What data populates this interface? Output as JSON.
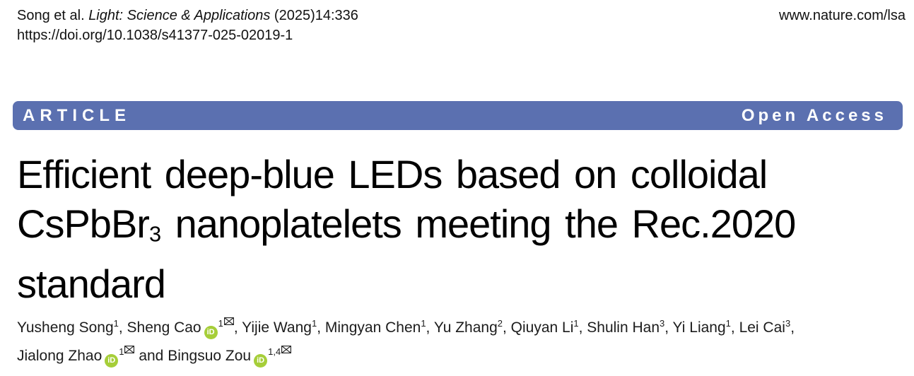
{
  "header": {
    "citation_prefix": "Song et al. ",
    "journal_name": "Light: Science & Applications",
    "citation_suffix": " (2025)14:336",
    "doi": "https://doi.org/10.1038/s41377-025-02019-1",
    "website": "www.nature.com/lsa"
  },
  "banner": {
    "article_label": "ARTICLE",
    "open_access_label": "Open Access",
    "background_color": "#5b70b0",
    "text_color": "#ffffff"
  },
  "title": {
    "line1": "Efficient deep-blue LEDs based on colloidal",
    "line2_formula_base": "CsPbBr",
    "line2_formula_subscript": "3",
    "line2_rest": " nanoplatelets meeting the Rec.2020",
    "line3": "standard"
  },
  "authors": {
    "line1": [
      {
        "name": "Yusheng Song",
        "sup": "1",
        "orcid": false,
        "email": false,
        "sep": ", "
      },
      {
        "name": "Sheng Cao",
        "sup": "1",
        "orcid": true,
        "email": true,
        "sep": ", "
      },
      {
        "name": "Yijie Wang",
        "sup": "1",
        "orcid": false,
        "email": false,
        "sep": ", "
      },
      {
        "name": "Mingyan Chen",
        "sup": "1",
        "orcid": false,
        "email": false,
        "sep": ", "
      },
      {
        "name": "Yu Zhang",
        "sup": "2",
        "orcid": false,
        "email": false,
        "sep": ", "
      },
      {
        "name": "Qiuyan Li",
        "sup": "1",
        "orcid": false,
        "email": false,
        "sep": ", "
      },
      {
        "name": "Shulin Han",
        "sup": "3",
        "orcid": false,
        "email": false,
        "sep": ", "
      },
      {
        "name": "Yi Liang",
        "sup": "1",
        "orcid": false,
        "email": false,
        "sep": ", "
      },
      {
        "name": "Lei Cai",
        "sup": "3",
        "orcid": false,
        "email": false,
        "sep": ","
      }
    ],
    "line2": [
      {
        "name": "Jialong Zhao",
        "sup": "1",
        "orcid": true,
        "email": true,
        "sep": " and "
      },
      {
        "name": "Bingsuo Zou",
        "sup": "1,4",
        "orcid": true,
        "email": true,
        "sep": ""
      }
    ]
  },
  "icons": {
    "orcid_label": "iD",
    "orcid_color": "#a6ce39",
    "email_icon_name": "envelope-icon"
  }
}
